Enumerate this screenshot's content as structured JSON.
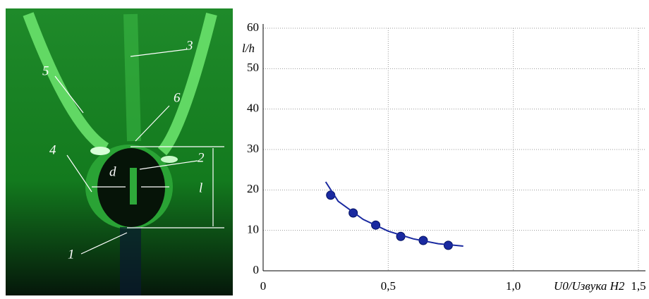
{
  "photo": {
    "labels": [
      "1",
      "2",
      "3",
      "4",
      "5",
      "6",
      "d",
      "l"
    ]
  },
  "chart_data": {
    "type": "scatter",
    "y_label": "l/h",
    "x_label": "U0/Uзвука H2",
    "xlim": [
      0,
      1.5
    ],
    "ylim": [
      0,
      60
    ],
    "xticks": [
      0,
      {
        "value": 0.5,
        "label": "0,5"
      },
      {
        "value": 1.0,
        "label": "1,0"
      },
      {
        "value": 1.5,
        "label": "1,5"
      }
    ],
    "yticks": [
      0,
      10,
      20,
      30,
      40,
      50,
      60
    ],
    "grid": true,
    "series": [
      {
        "color": "#1a2aa0",
        "marker": true,
        "x": [
          0.27,
          0.36,
          0.45,
          0.55,
          0.64,
          0.74
        ],
        "values": [
          18.7,
          14.3,
          11.3,
          8.5,
          7.5,
          6.3
        ]
      },
      {
        "color": "#1a2aa0",
        "marker": false,
        "x": [
          0.25,
          0.3,
          0.4,
          0.5,
          0.6,
          0.7,
          0.8
        ],
        "values": [
          22,
          17.2,
          12.7,
          9.8,
          7.9,
          6.7,
          6.1
        ]
      }
    ]
  }
}
